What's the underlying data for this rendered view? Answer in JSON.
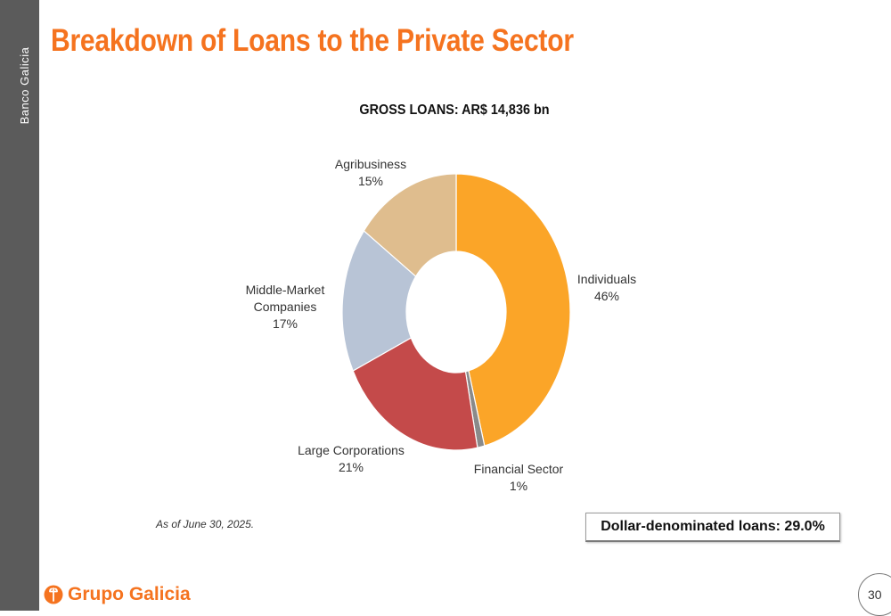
{
  "header": {
    "side_brand": "Banco Galicia",
    "title": "Breakdown of Loans to the Private Sector"
  },
  "chart_data": {
    "type": "pie",
    "title": "GROSS LOANS: AR$ 14,836 bn",
    "categories": [
      "Individuals",
      "Financial Sector",
      "Large Corporations",
      "Middle-Market Companies",
      "Agribusiness"
    ],
    "values": [
      46,
      1,
      21,
      17,
      15
    ],
    "value_labels": [
      "46%",
      "1%",
      "21%",
      "17%",
      "15%"
    ],
    "label_lines": [
      [
        "Individuals"
      ],
      [
        "Financial Sector"
      ],
      [
        "Large Corporations"
      ],
      [
        "Middle-Market",
        "Companies"
      ],
      [
        "Agribusiness"
      ]
    ],
    "colors": [
      "#fba528",
      "#8a8a8a",
      "#c44a4a",
      "#b8c4d6",
      "#dfbd8e"
    ]
  },
  "footnote": "As of June 30, 2025.",
  "dollar_loans": "Dollar-denominated  loans: 29.0%",
  "footer": {
    "logo_text": "Grupo Galicia",
    "page_number": "30"
  },
  "colors": {
    "accent": "#f5731f",
    "sidebar": "#5b5b5b"
  }
}
